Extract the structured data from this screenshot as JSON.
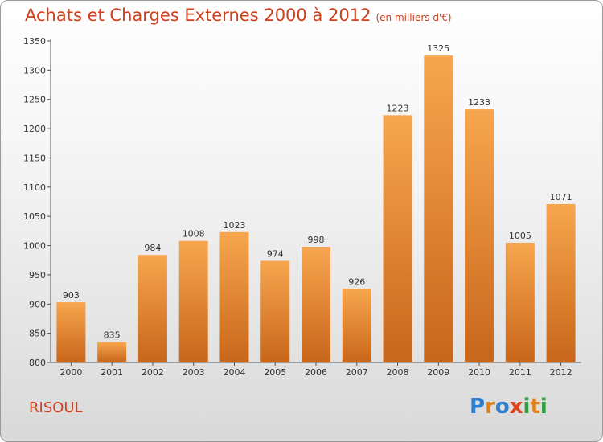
{
  "header": {
    "title": "Achats et Charges Externes 2000 à 2012",
    "subtitle": "(en milliers d'€)"
  },
  "footer": {
    "commune": "RISOUL",
    "logo_letters": [
      "P",
      "r",
      "o",
      "x",
      "i",
      "t",
      "i"
    ],
    "logo_colors": [
      "#2f7fd0",
      "#e0801a",
      "#2f7fd0",
      "#e0401a",
      "#2fa040",
      "#e0801a",
      "#2fa040"
    ]
  },
  "chart_data": {
    "type": "bar",
    "categories": [
      "2000",
      "2001",
      "2002",
      "2003",
      "2004",
      "2005",
      "2006",
      "2007",
      "2008",
      "2009",
      "2010",
      "2011",
      "2012"
    ],
    "values": [
      903,
      835,
      984,
      1008,
      1023,
      974,
      998,
      926,
      1223,
      1325,
      1233,
      1005,
      1071
    ],
    "yticks": [
      800,
      850,
      900,
      950,
      1000,
      1050,
      1100,
      1150,
      1200,
      1250,
      1300,
      1350
    ],
    "ylim": [
      800,
      1350
    ],
    "grid": false,
    "bar_color_top": "#f7a64f",
    "bar_color_bottom": "#c8661a"
  }
}
